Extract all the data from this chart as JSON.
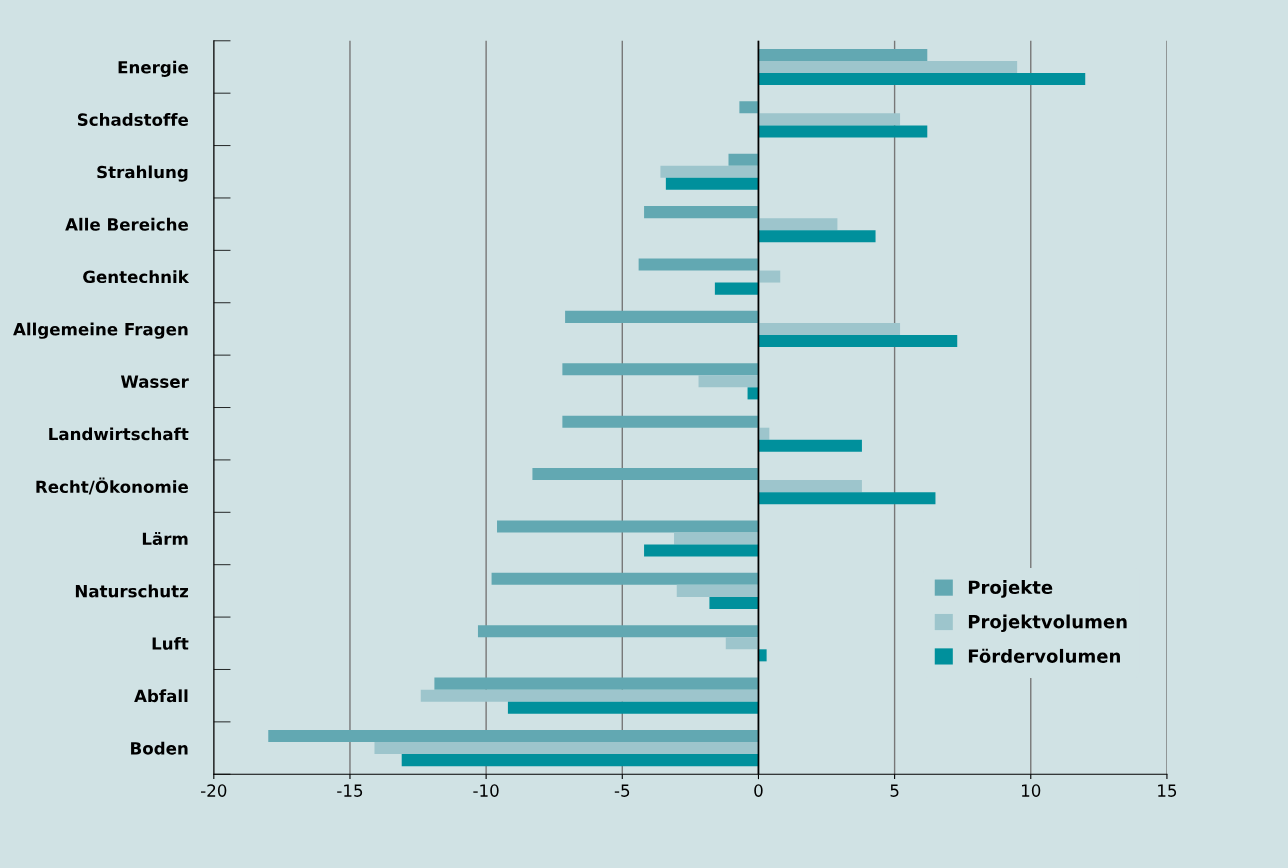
{
  "chart_data": {
    "type": "bar",
    "orientation": "horizontal",
    "categories": [
      "Energie",
      "Schadstoffe",
      "Strahlung",
      "Alle Bereiche",
      "Gentechnik",
      "Allgemeine Fragen",
      "Wasser",
      "Landwirtschaft",
      "Recht/Ökonomie",
      "Lärm",
      "Naturschutz",
      "Luft",
      "Abfall",
      "Boden"
    ],
    "series": [
      {
        "name": "Projekte",
        "color": "#62a8b2",
        "values": [
          6.2,
          -0.7,
          -1.1,
          -4.2,
          -4.4,
          -7.1,
          -7.2,
          -7.2,
          -8.3,
          -9.6,
          -9.8,
          -10.3,
          -11.9,
          -18.0
        ]
      },
      {
        "name": "Projektvolumen",
        "color": "#9dc5cc",
        "values": [
          9.5,
          5.2,
          -3.6,
          2.9,
          0.8,
          5.2,
          -2.2,
          0.4,
          3.8,
          -3.1,
          -3.0,
          -1.2,
          -12.4,
          -14.1
        ]
      },
      {
        "name": "Fördervolumen",
        "color": "#00909c",
        "values": [
          12.0,
          6.2,
          -3.4,
          4.3,
          -1.6,
          7.3,
          -0.4,
          3.8,
          6.5,
          -4.2,
          -1.8,
          0.3,
          -9.2,
          -13.1
        ]
      }
    ],
    "xlim": [
      -20,
      15
    ],
    "xticks": [
      -20,
      -15,
      -10,
      -5,
      0,
      5,
      10,
      15
    ],
    "ref_lines": [
      {
        "axis": "x",
        "value": 0,
        "color": "#000000"
      }
    ],
    "grid": "x",
    "legend": "bottom right"
  }
}
